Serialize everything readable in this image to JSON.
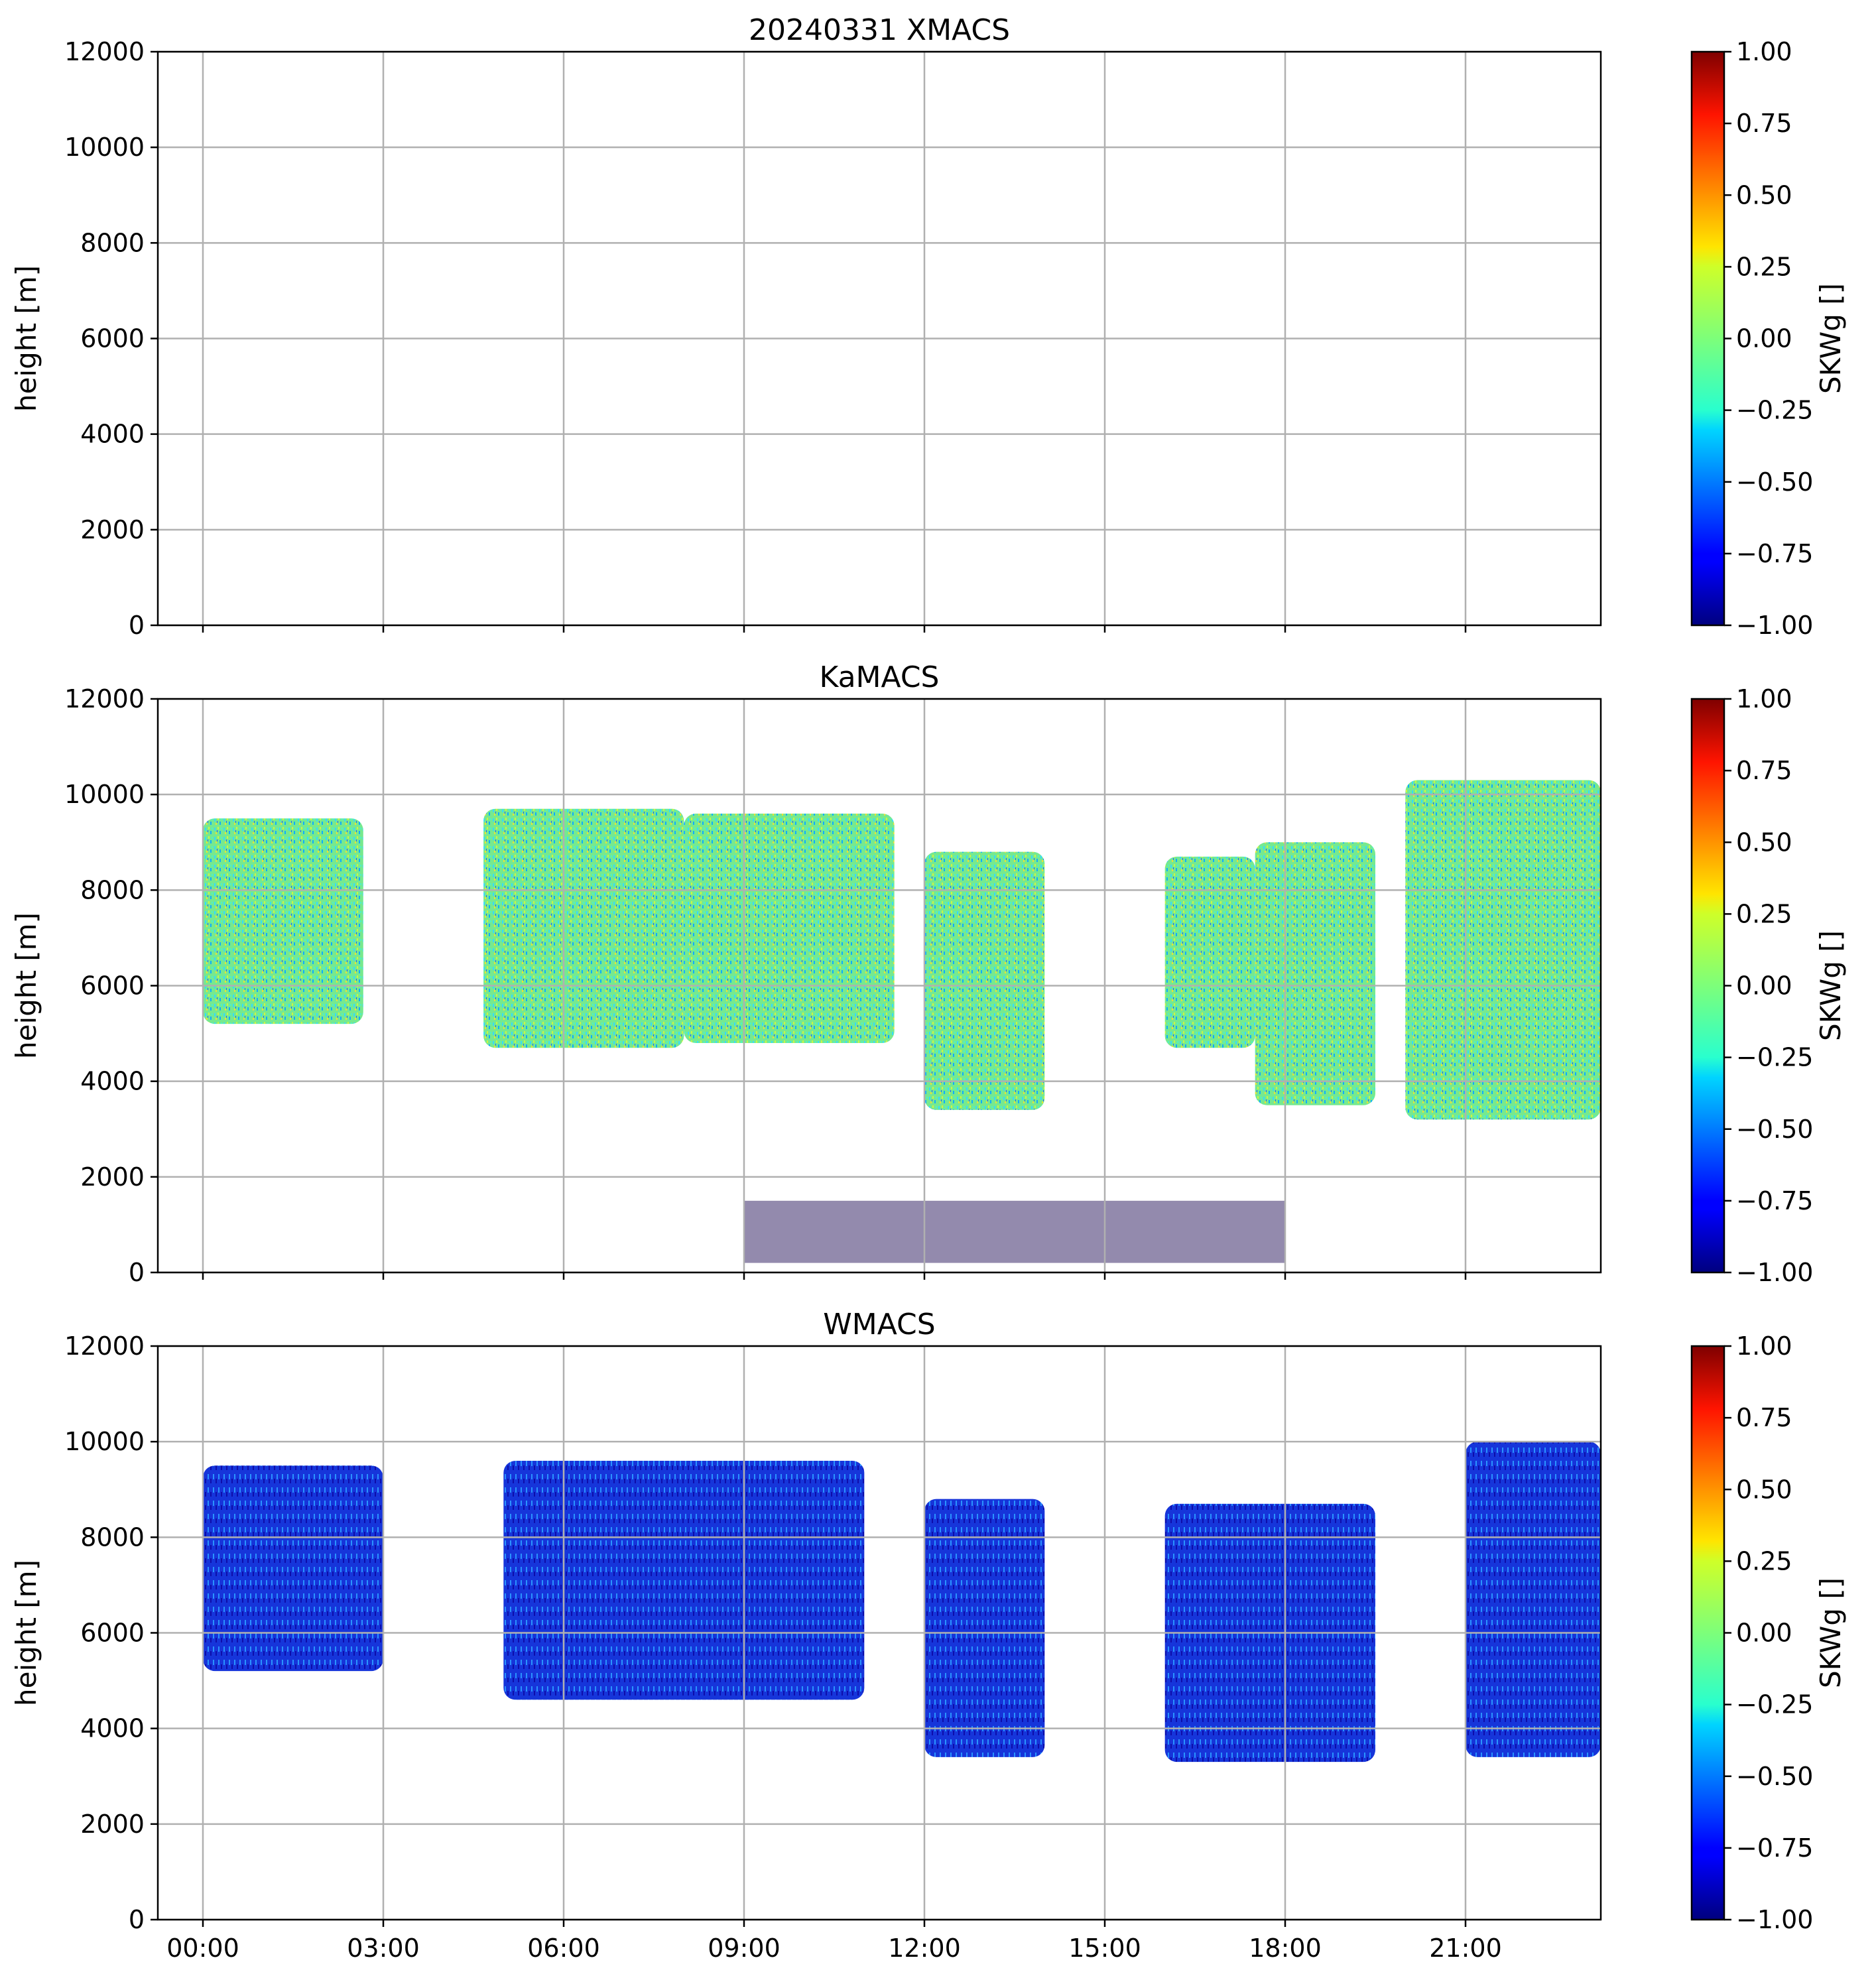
{
  "chart_data": [
    {
      "type": "heatmap",
      "title": "20240331 XMACS",
      "ylabel": "height [m]",
      "ylim": [
        0,
        12000
      ],
      "yticks": [
        "0",
        "2000",
        "4000",
        "6000",
        "8000",
        "10000",
        "12000"
      ],
      "xticks": [],
      "grid": true,
      "colorbar": {
        "label": "SKWg []",
        "range": [
          -1,
          1
        ],
        "ticks": [
          "−1.00",
          "−0.75",
          "−0.50",
          "−0.25",
          "0.00",
          "0.25",
          "0.50",
          "0.75",
          "1.00"
        ],
        "colormap": "jet"
      },
      "cloud_regions": []
    },
    {
      "type": "heatmap",
      "title": "KaMACS",
      "ylabel": "height [m]",
      "ylim": [
        0,
        12000
      ],
      "yticks": [
        "0",
        "2000",
        "4000",
        "6000",
        "8000",
        "10000",
        "12000"
      ],
      "xticks": [],
      "grid": true,
      "colorbar": {
        "label": "SKWg []",
        "range": [
          -1,
          1
        ],
        "ticks": [
          "−1.00",
          "−0.75",
          "−0.50",
          "−0.25",
          "0.00",
          "0.25",
          "0.50",
          "0.75",
          "1.00"
        ],
        "colormap": "jet"
      },
      "cloud_regions": [
        {
          "t_start": "00:00",
          "t_end": "02:40",
          "h_bottom": 5200,
          "h_top": 9500
        },
        {
          "t_start": "04:40",
          "t_end": "08:00",
          "h_bottom": 4700,
          "h_top": 9700
        },
        {
          "t_start": "08:00",
          "t_end": "11:30",
          "h_bottom": 4800,
          "h_top": 9600
        },
        {
          "t_start": "12:00",
          "t_end": "14:00",
          "h_bottom": 3400,
          "h_top": 8800
        },
        {
          "t_start": "16:00",
          "t_end": "17:30",
          "h_bottom": 4700,
          "h_top": 8700
        },
        {
          "t_start": "17:30",
          "t_end": "19:30",
          "h_bottom": 3500,
          "h_top": 9000
        },
        {
          "t_start": "20:00",
          "t_end": "24:00",
          "h_bottom": 3200,
          "h_top": 10300
        },
        {
          "t_start": "09:00",
          "t_end": "18:00",
          "h_bottom": 200,
          "h_top": 1500,
          "kind": "clutter"
        }
      ]
    },
    {
      "type": "heatmap",
      "title": "WMACS",
      "ylabel": "height [m]",
      "ylim": [
        0,
        12000
      ],
      "yticks": [
        "0",
        "2000",
        "4000",
        "6000",
        "8000",
        "10000",
        "12000"
      ],
      "xticks": [
        "00:00",
        "03:00",
        "06:00",
        "09:00",
        "12:00",
        "15:00",
        "18:00",
        "21:00"
      ],
      "grid": true,
      "colorbar": {
        "label": "SKWg []",
        "range": [
          -1,
          1
        ],
        "ticks": [
          "−1.00",
          "−0.75",
          "−0.50",
          "−0.25",
          "0.00",
          "0.25",
          "0.50",
          "0.75",
          "1.00"
        ],
        "colormap": "jet"
      },
      "cloud_regions": [
        {
          "t_start": "00:00",
          "t_end": "03:00",
          "h_bottom": 5200,
          "h_top": 9500
        },
        {
          "t_start": "05:00",
          "t_end": "11:00",
          "h_bottom": 4600,
          "h_top": 9600
        },
        {
          "t_start": "12:00",
          "t_end": "14:00",
          "h_bottom": 3400,
          "h_top": 8800
        },
        {
          "t_start": "16:00",
          "t_end": "19:30",
          "h_bottom": 3300,
          "h_top": 8700
        },
        {
          "t_start": "21:00",
          "t_end": "24:00",
          "h_bottom": 3400,
          "h_top": 10000
        }
      ]
    }
  ]
}
